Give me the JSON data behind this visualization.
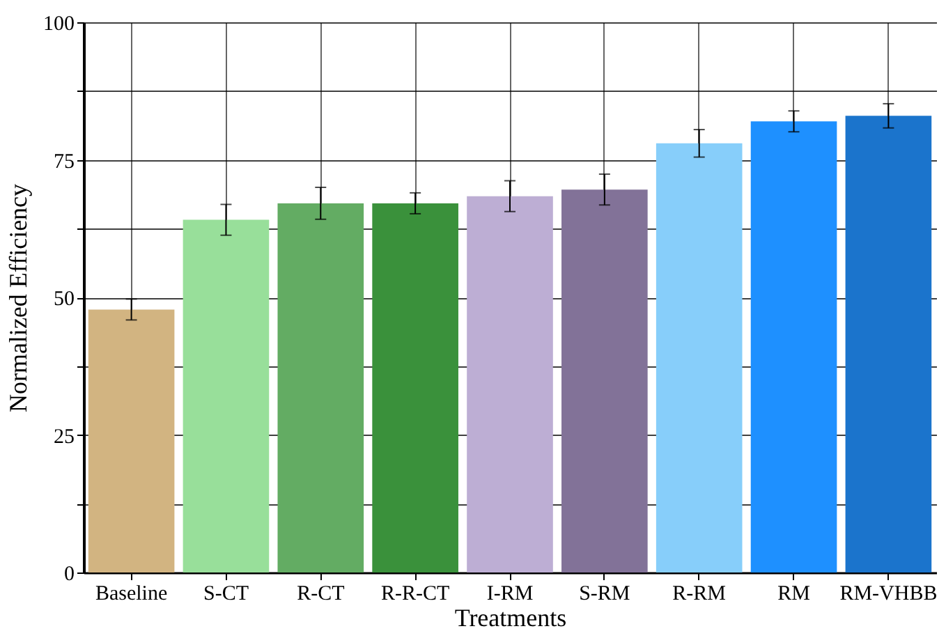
{
  "chart_data": {
    "type": "bar",
    "xlabel": "Treatments",
    "ylabel": "Normalized Efficiency",
    "categories": [
      "Baseline",
      "S-CT",
      "R-CT",
      "R-R-CT",
      "I-RM",
      "S-RM",
      "R-RM",
      "RM",
      "RM-VHBB"
    ],
    "values": [
      47.8,
      64.1,
      67.1,
      67.1,
      68.4,
      69.6,
      78.0,
      82.0,
      83.0
    ],
    "errors": [
      1.9,
      2.8,
      2.9,
      1.9,
      2.8,
      2.8,
      2.5,
      1.9,
      2.2
    ],
    "colors": [
      "#d2b481",
      "#98df9a",
      "#63ac63",
      "#3a913b",
      "#bdaed4",
      "#827298",
      "#87cefa",
      "#1e90ff",
      "#1b74cc"
    ],
    "ylim": [
      0,
      100
    ],
    "yticks": [
      0,
      {
        "value": 12.5,
        "label": null
      },
      25,
      {
        "value": 37.5,
        "label": null
      },
      50,
      {
        "value": 62.5,
        "label": null
      },
      75,
      {
        "value": 87.5,
        "label": null
      },
      100
    ],
    "grid": true
  }
}
